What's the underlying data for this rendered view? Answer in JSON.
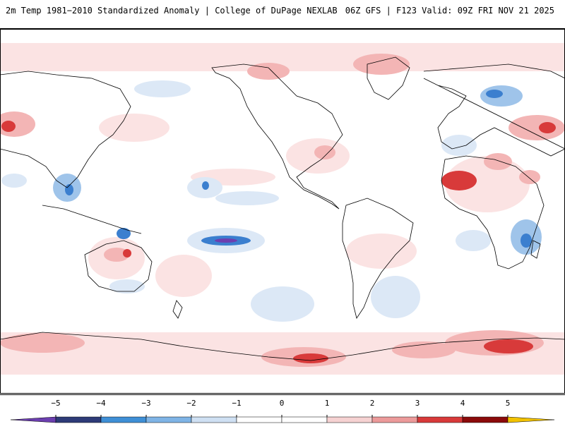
{
  "header": {
    "title": "2m Temp 1981−2010 Standardized Anomaly | College of DuPage NEXLAB",
    "run_info": "06Z GFS | F123 Valid: 09Z FRI NOV 21 2025"
  },
  "legend": {
    "ticks": [
      "−5",
      "−4",
      "−3",
      "−2",
      "−1",
      "0",
      "1",
      "2",
      "3",
      "4",
      "5"
    ],
    "colors": [
      "#6c3fb0",
      "#2e3b78",
      "#3f8fd6",
      "#7fb4e6",
      "#cfe0f3",
      "#ffffff",
      "#ffffff",
      "#f6d2d2",
      "#ec9a9a",
      "#d83a3a",
      "#8b0a0a",
      "#f2c200"
    ]
  },
  "map": {
    "ocean_color": "#ffffff",
    "warm_light": "#fbe3e3",
    "warm_mid": "#f3b5b5",
    "warm_strong": "#d83a3a",
    "cool_light": "#dce8f6",
    "cool_mid": "#9fc4ea",
    "cool_strong": "#3b7fcf",
    "extreme_cool": "#6c3fb0",
    "land_line": "#000000"
  }
}
